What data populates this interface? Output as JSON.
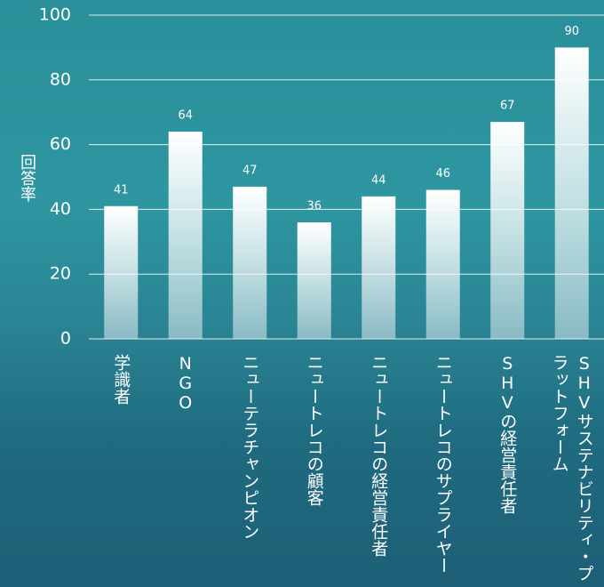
{
  "chart_data": {
    "type": "bar",
    "y_label": "回答率",
    "categories": [
      "学識者",
      "NGO",
      "ニューテラチャンピオン",
      "ニュートレコの顧客",
      "ニュートレコの経営責任者",
      "ニュートレコのサプライヤー",
      "SHVの経営責任者",
      "SHVサステナビリティ・プラットフォーム"
    ],
    "values": [
      41,
      64,
      47,
      36,
      44,
      46,
      67,
      90
    ],
    "color": "#ffffff",
    "ylim": [
      0,
      100
    ],
    "yticks": [
      0,
      20,
      40,
      60,
      80,
      100
    ],
    "grid": true
  }
}
